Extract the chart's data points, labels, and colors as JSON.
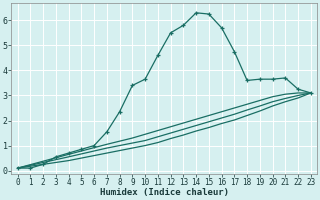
{
  "xlabel": "Humidex (Indice chaleur)",
  "bg_color": "#d6f0f0",
  "grid_color": "#b0d8d8",
  "line_color": "#1a6e64",
  "xlim": [
    -0.5,
    23.5
  ],
  "ylim": [
    -0.15,
    6.7
  ],
  "xticks": [
    0,
    1,
    2,
    3,
    4,
    5,
    6,
    7,
    8,
    9,
    10,
    11,
    12,
    13,
    14,
    15,
    16,
    17,
    18,
    19,
    20,
    21,
    22,
    23
  ],
  "yticks": [
    0,
    1,
    2,
    3,
    4,
    5,
    6
  ],
  "line1_x": [
    0,
    1,
    2,
    3,
    4,
    5,
    6,
    7,
    8,
    9,
    10,
    11,
    12,
    13,
    14,
    15,
    16,
    17,
    18,
    19,
    20,
    21,
    22,
    23
  ],
  "line1_y": [
    0.1,
    0.1,
    0.25,
    0.55,
    0.7,
    0.85,
    1.0,
    1.55,
    2.35,
    3.4,
    3.65,
    4.6,
    5.5,
    5.8,
    6.3,
    6.25,
    5.7,
    4.75,
    3.6,
    3.65,
    3.65,
    3.7,
    3.25,
    3.1
  ],
  "line2_x": [
    0,
    4,
    7,
    9,
    10,
    11,
    12,
    13,
    14,
    15,
    16,
    17,
    18,
    19,
    20,
    21,
    22,
    23
  ],
  "line2_y": [
    0.1,
    0.65,
    1.05,
    1.3,
    1.45,
    1.6,
    1.75,
    1.9,
    2.05,
    2.2,
    2.35,
    2.5,
    2.65,
    2.8,
    2.95,
    3.05,
    3.1,
    3.1
  ],
  "line3_x": [
    0,
    4,
    7,
    9,
    10,
    11,
    12,
    13,
    14,
    15,
    16,
    17,
    18,
    19,
    20,
    21,
    22,
    23
  ],
  "line3_y": [
    0.1,
    0.55,
    0.9,
    1.1,
    1.2,
    1.35,
    1.5,
    1.65,
    1.8,
    1.95,
    2.1,
    2.25,
    2.42,
    2.58,
    2.75,
    2.88,
    3.0,
    3.1
  ],
  "line4_x": [
    0,
    4,
    7,
    9,
    10,
    11,
    12,
    13,
    14,
    15,
    16,
    17,
    18,
    19,
    20,
    21,
    22,
    23
  ],
  "line4_y": [
    0.1,
    0.4,
    0.7,
    0.9,
    1.0,
    1.12,
    1.28,
    1.42,
    1.58,
    1.72,
    1.88,
    2.02,
    2.2,
    2.38,
    2.58,
    2.75,
    2.9,
    3.1
  ]
}
